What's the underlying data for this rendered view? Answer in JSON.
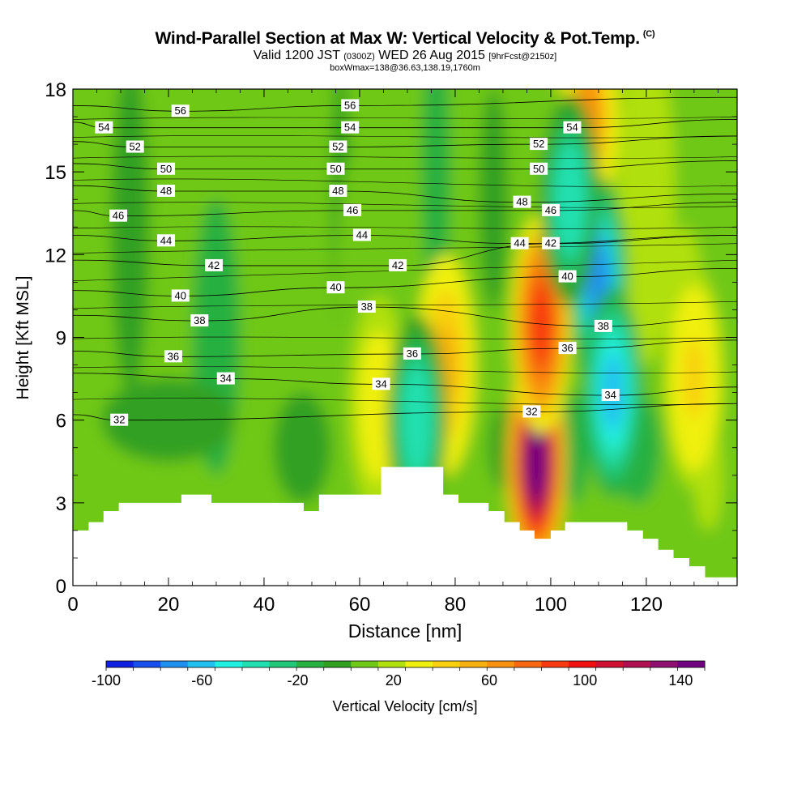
{
  "title": {
    "main": "Wind-Parallel Section at Max W: Vertical Velocity & Pot.Temp.",
    "copyright": "(C)",
    "valid": "Valid 1200 JST",
    "zulu": "(0300Z)",
    "date": "WED 26 Aug 2015",
    "forecast": "[9hrFcst@2150z]",
    "box": "boxWmax=138@36.63,138.19,1760m"
  },
  "chart_data": {
    "type": "heatmap",
    "xlabel": "Distance [nm]",
    "ylabel": "Height [Kft MSL]",
    "xlim": [
      0,
      139
    ],
    "ylim": [
      0,
      18
    ],
    "x_ticks": [
      0,
      20,
      40,
      60,
      80,
      100,
      120
    ],
    "y_ticks": [
      0,
      3,
      6,
      9,
      12,
      15,
      18
    ],
    "colorbar": {
      "label": "Vertical Velocity [cm/s]",
      "ticks": [
        -100,
        -60,
        -20,
        20,
        60,
        100,
        140
      ],
      "range": [
        -100,
        150
      ],
      "colors": [
        "#1020e0",
        "#1850f0",
        "#2090f0",
        "#20c0f0",
        "#20f0e0",
        "#20e0b0",
        "#20c878",
        "#28b040",
        "#30a020",
        "#70c818",
        "#b0e010",
        "#f0f010",
        "#f8d010",
        "#f8b010",
        "#f89010",
        "#f86810",
        "#f83810",
        "#f01010",
        "#d01030",
        "#b01050",
        "#901070",
        "#700080"
      ]
    },
    "vertical_velocity_features": [
      {
        "kind": "updraft",
        "x": 97,
        "y": 4.5,
        "peak_cm_s": 140
      },
      {
        "kind": "updraft",
        "x": 98,
        "y": 9.5,
        "peak_cm_s": 90
      },
      {
        "kind": "updraft",
        "x": 108,
        "y": 17.0,
        "peak_cm_s": 60
      },
      {
        "kind": "updraft",
        "x": 78,
        "y": 8.0,
        "peak_cm_s": 50
      },
      {
        "kind": "updraft",
        "x": 64,
        "y": 6.5,
        "peak_cm_s": 30
      },
      {
        "kind": "updraft",
        "x": 130,
        "y": 7.5,
        "peak_cm_s": 40
      },
      {
        "kind": "downdraft",
        "x": 110,
        "y": 11.0,
        "peak_cm_s": -70
      },
      {
        "kind": "downdraft",
        "x": 113,
        "y": 7.0,
        "peak_cm_s": -60
      },
      {
        "kind": "downdraft",
        "x": 72,
        "y": 6.0,
        "peak_cm_s": -40
      },
      {
        "kind": "downdraft",
        "x": 104,
        "y": 14.0,
        "peak_cm_s": -40
      }
    ],
    "pot_temp_contour_labels": [
      {
        "v": 56,
        "x": 22.5,
        "y": 17.2
      },
      {
        "v": 54,
        "x": 6.5,
        "y": 16.6
      },
      {
        "v": 52,
        "x": 13,
        "y": 15.9
      },
      {
        "v": 50,
        "x": 19.5,
        "y": 15.1
      },
      {
        "v": 48,
        "x": 19.5,
        "y": 14.3
      },
      {
        "v": 46,
        "x": 9.5,
        "y": 13.4
      },
      {
        "v": 44,
        "x": 19.5,
        "y": 12.5
      },
      {
        "v": 42,
        "x": 29.5,
        "y": 11.6
      },
      {
        "v": 40,
        "x": 22.5,
        "y": 10.5
      },
      {
        "v": 38,
        "x": 26.5,
        "y": 9.6
      },
      {
        "v": 36,
        "x": 21,
        "y": 8.3
      },
      {
        "v": 34,
        "x": 32,
        "y": 7.5
      },
      {
        "v": 32,
        "x": 9.7,
        "y": 6.0
      },
      {
        "v": 56,
        "x": 58,
        "y": 17.4
      },
      {
        "v": 54,
        "x": 58,
        "y": 16.6
      },
      {
        "v": 52,
        "x": 55.5,
        "y": 15.9
      },
      {
        "v": 50,
        "x": 55,
        "y": 15.1
      },
      {
        "v": 48,
        "x": 55.5,
        "y": 14.3
      },
      {
        "v": 46,
        "x": 58.5,
        "y": 13.6
      },
      {
        "v": 44,
        "x": 60.5,
        "y": 12.7
      },
      {
        "v": 42,
        "x": 68,
        "y": 11.6
      },
      {
        "v": 40,
        "x": 55,
        "y": 10.8
      },
      {
        "v": 38,
        "x": 61.5,
        "y": 10.1
      },
      {
        "v": 36,
        "x": 71,
        "y": 8.4
      },
      {
        "v": 34,
        "x": 64.5,
        "y": 7.3
      },
      {
        "v": 54,
        "x": 104.5,
        "y": 16.6
      },
      {
        "v": 52,
        "x": 97.5,
        "y": 16.0
      },
      {
        "v": 50,
        "x": 97.5,
        "y": 15.1
      },
      {
        "v": 48,
        "x": 94,
        "y": 13.9
      },
      {
        "v": 46,
        "x": 100,
        "y": 13.6
      },
      {
        "v": 44,
        "x": 93.5,
        "y": 12.4
      },
      {
        "v": 42,
        "x": 100,
        "y": 12.4
      },
      {
        "v": 40,
        "x": 103.5,
        "y": 11.2
      },
      {
        "v": 38,
        "x": 111,
        "y": 9.4
      },
      {
        "v": 36,
        "x": 103.5,
        "y": 8.6
      },
      {
        "v": 34,
        "x": 112.5,
        "y": 6.9
      },
      {
        "v": 32,
        "x": 96,
        "y": 6.3
      }
    ],
    "terrain": [
      [
        0,
        2
      ],
      [
        3.3,
        2
      ],
      [
        3.3,
        2.3
      ],
      [
        6.4,
        2.3
      ],
      [
        6.4,
        2.7
      ],
      [
        9.6,
        2.7
      ],
      [
        9.6,
        3
      ],
      [
        22.7,
        3
      ],
      [
        22.7,
        3.3
      ],
      [
        29,
        3.3
      ],
      [
        29,
        3
      ],
      [
        48.3,
        3
      ],
      [
        48.3,
        2.7
      ],
      [
        51.5,
        2.7
      ],
      [
        51.5,
        3.3
      ],
      [
        64.5,
        3.3
      ],
      [
        64.5,
        4.3
      ],
      [
        77.5,
        4.3
      ],
      [
        77.5,
        3.3
      ],
      [
        80.7,
        3.3
      ],
      [
        80.7,
        3
      ],
      [
        87,
        3
      ],
      [
        87,
        2.7
      ],
      [
        90.3,
        2.7
      ],
      [
        90.3,
        2.3
      ],
      [
        93.5,
        2.3
      ],
      [
        93.5,
        2
      ],
      [
        96.6,
        2
      ],
      [
        96.6,
        1.7
      ],
      [
        100,
        1.7
      ],
      [
        100,
        2
      ],
      [
        103,
        2
      ],
      [
        103,
        2.3
      ],
      [
        116,
        2.3
      ],
      [
        116,
        2
      ],
      [
        119.3,
        2
      ],
      [
        119.3,
        1.7
      ],
      [
        122.5,
        1.7
      ],
      [
        122.5,
        1.3
      ],
      [
        125.7,
        1.3
      ],
      [
        125.7,
        1
      ],
      [
        129,
        1
      ],
      [
        129,
        0.7
      ],
      [
        132.3,
        0.7
      ],
      [
        132.3,
        0.3
      ],
      [
        139,
        0.3
      ]
    ]
  }
}
